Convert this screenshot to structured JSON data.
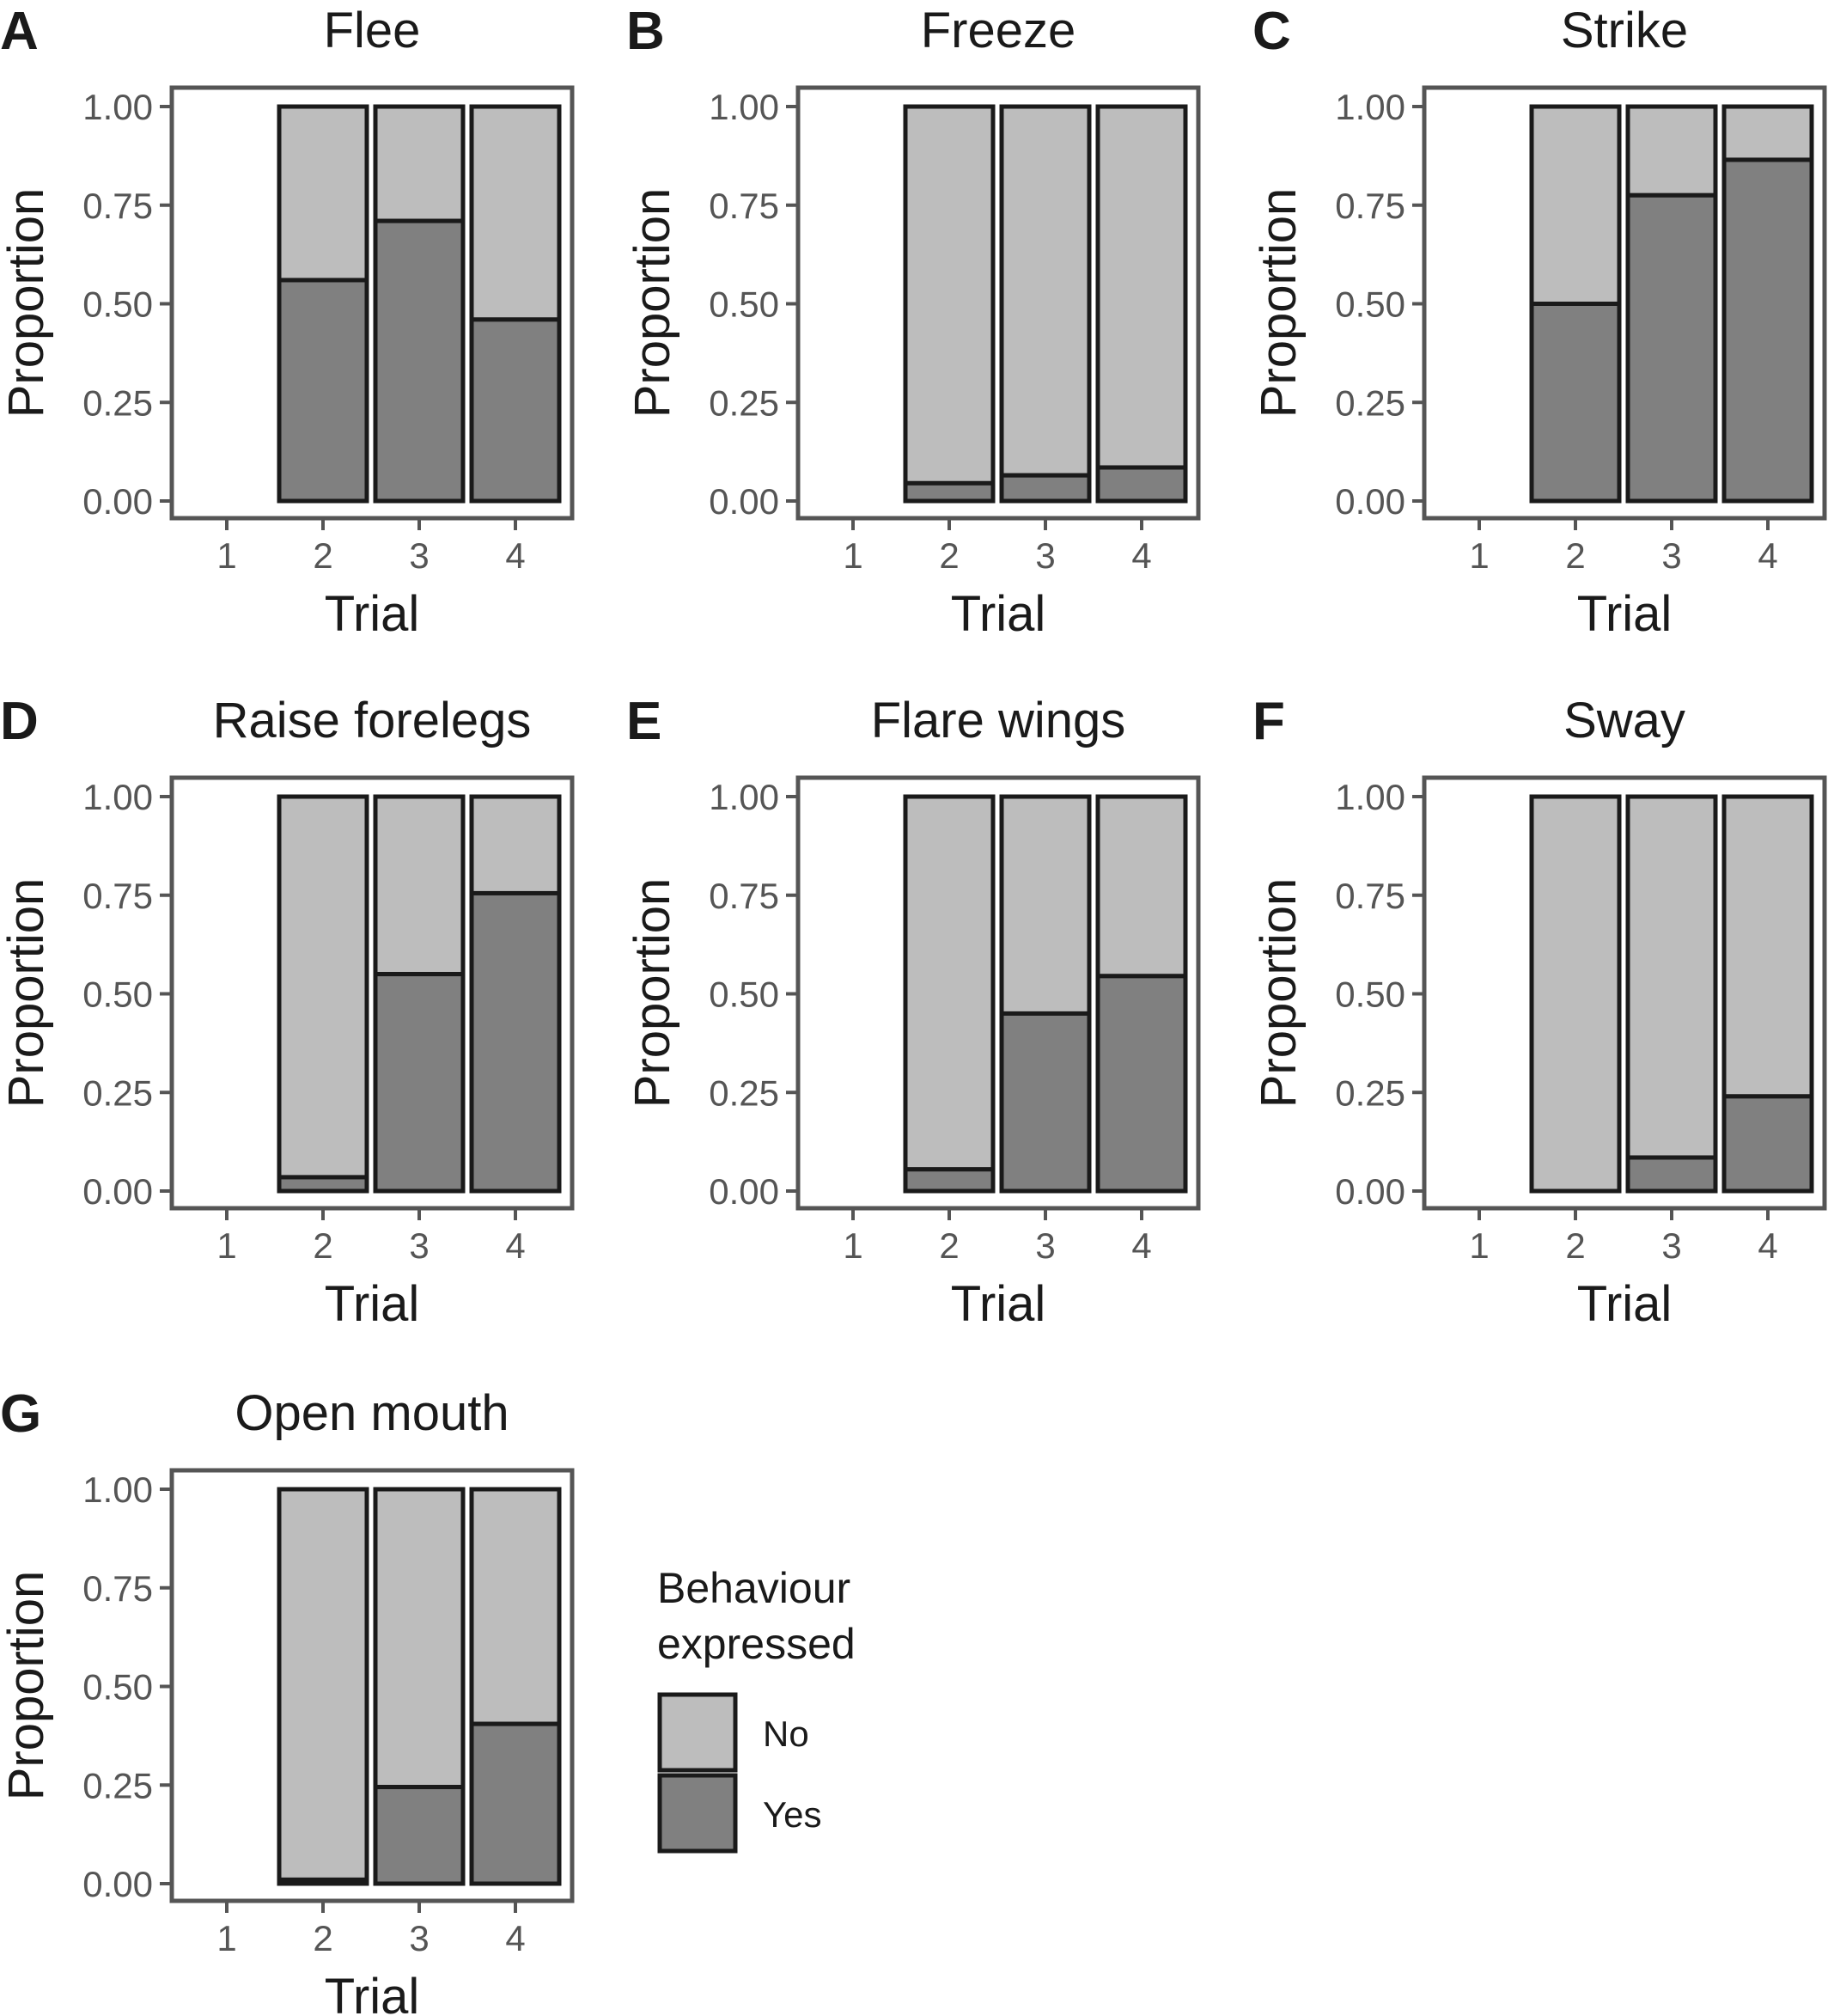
{
  "chart_data": [
    {
      "panel": "A",
      "title": "Flee",
      "type": "bar",
      "stacked": true,
      "xlabel": "Trial",
      "ylabel": "Proportion",
      "categories": [
        "1",
        "2",
        "3",
        "4"
      ],
      "series": [
        {
          "name": "No",
          "values": [
            null,
            0.44,
            0.29,
            0.54
          ]
        },
        {
          "name": "Yes",
          "values": [
            null,
            0.56,
            0.71,
            0.46
          ]
        }
      ],
      "ylim": [
        0,
        1
      ],
      "yticks": [
        "0.00",
        "0.25",
        "0.50",
        "0.75",
        "1.00"
      ]
    },
    {
      "panel": "B",
      "title": "Freeze",
      "type": "bar",
      "stacked": true,
      "xlabel": "Trial",
      "ylabel": "Proportion",
      "categories": [
        "1",
        "2",
        "3",
        "4"
      ],
      "series": [
        {
          "name": "No",
          "values": [
            null,
            0.955,
            0.935,
            0.915
          ]
        },
        {
          "name": "Yes",
          "values": [
            null,
            0.045,
            0.065,
            0.085
          ]
        }
      ],
      "ylim": [
        0,
        1
      ],
      "yticks": [
        "0.00",
        "0.25",
        "0.50",
        "0.75",
        "1.00"
      ]
    },
    {
      "panel": "C",
      "title": "Strike",
      "type": "bar",
      "stacked": true,
      "xlabel": "Trial",
      "ylabel": "Proportion",
      "categories": [
        "1",
        "2",
        "3",
        "4"
      ],
      "series": [
        {
          "name": "No",
          "values": [
            null,
            0.5,
            0.225,
            0.135
          ]
        },
        {
          "name": "Yes",
          "values": [
            null,
            0.5,
            0.775,
            0.865
          ]
        }
      ],
      "ylim": [
        0,
        1
      ],
      "yticks": [
        "0.00",
        "0.25",
        "0.50",
        "0.75",
        "1.00"
      ]
    },
    {
      "panel": "D",
      "title": "Raise forelegs",
      "type": "bar",
      "stacked": true,
      "xlabel": "Trial",
      "ylabel": "Proportion",
      "categories": [
        "1",
        "2",
        "3",
        "4"
      ],
      "series": [
        {
          "name": "No",
          "values": [
            null,
            0.965,
            0.45,
            0.245
          ]
        },
        {
          "name": "Yes",
          "values": [
            null,
            0.035,
            0.55,
            0.755
          ]
        }
      ],
      "ylim": [
        0,
        1
      ],
      "yticks": [
        "0.00",
        "0.25",
        "0.50",
        "0.75",
        "1.00"
      ]
    },
    {
      "panel": "E",
      "title": "Flare wings",
      "type": "bar",
      "stacked": true,
      "xlabel": "Trial",
      "ylabel": "Proportion",
      "categories": [
        "1",
        "2",
        "3",
        "4"
      ],
      "series": [
        {
          "name": "No",
          "values": [
            null,
            0.945,
            0.55,
            0.455
          ]
        },
        {
          "name": "Yes",
          "values": [
            null,
            0.055,
            0.45,
            0.545
          ]
        }
      ],
      "ylim": [
        0,
        1
      ],
      "yticks": [
        "0.00",
        "0.25",
        "0.50",
        "0.75",
        "1.00"
      ]
    },
    {
      "panel": "F",
      "title": "Sway",
      "type": "bar",
      "stacked": true,
      "xlabel": "Trial",
      "ylabel": "Proportion",
      "categories": [
        "1",
        "2",
        "3",
        "4"
      ],
      "series": [
        {
          "name": "No",
          "values": [
            null,
            1.0,
            0.915,
            0.76
          ]
        },
        {
          "name": "Yes",
          "values": [
            null,
            0.0,
            0.085,
            0.24
          ]
        }
      ],
      "ylim": [
        0,
        1
      ],
      "yticks": [
        "0.00",
        "0.25",
        "0.50",
        "0.75",
        "1.00"
      ]
    },
    {
      "panel": "G",
      "title": "Open mouth",
      "type": "bar",
      "stacked": true,
      "xlabel": "Trial",
      "ylabel": "Proportion",
      "categories": [
        "1",
        "2",
        "3",
        "4"
      ],
      "series": [
        {
          "name": "No",
          "values": [
            null,
            0.99,
            0.755,
            0.595
          ]
        },
        {
          "name": "Yes",
          "values": [
            null,
            0.01,
            0.245,
            0.405
          ]
        }
      ],
      "ylim": [
        0,
        1
      ],
      "yticks": [
        "0.00",
        "0.25",
        "0.50",
        "0.75",
        "1.00"
      ]
    }
  ],
  "legend": {
    "title_line1": "Behaviour",
    "title_line2": "expressed",
    "items": [
      {
        "label": "No",
        "color": "#bdbdbd"
      },
      {
        "label": "Yes",
        "color": "#808080"
      }
    ]
  },
  "colors": {
    "no": "#bdbdbd",
    "yes": "#808080",
    "outline": "#1a1a1a",
    "frame": "#555555"
  }
}
